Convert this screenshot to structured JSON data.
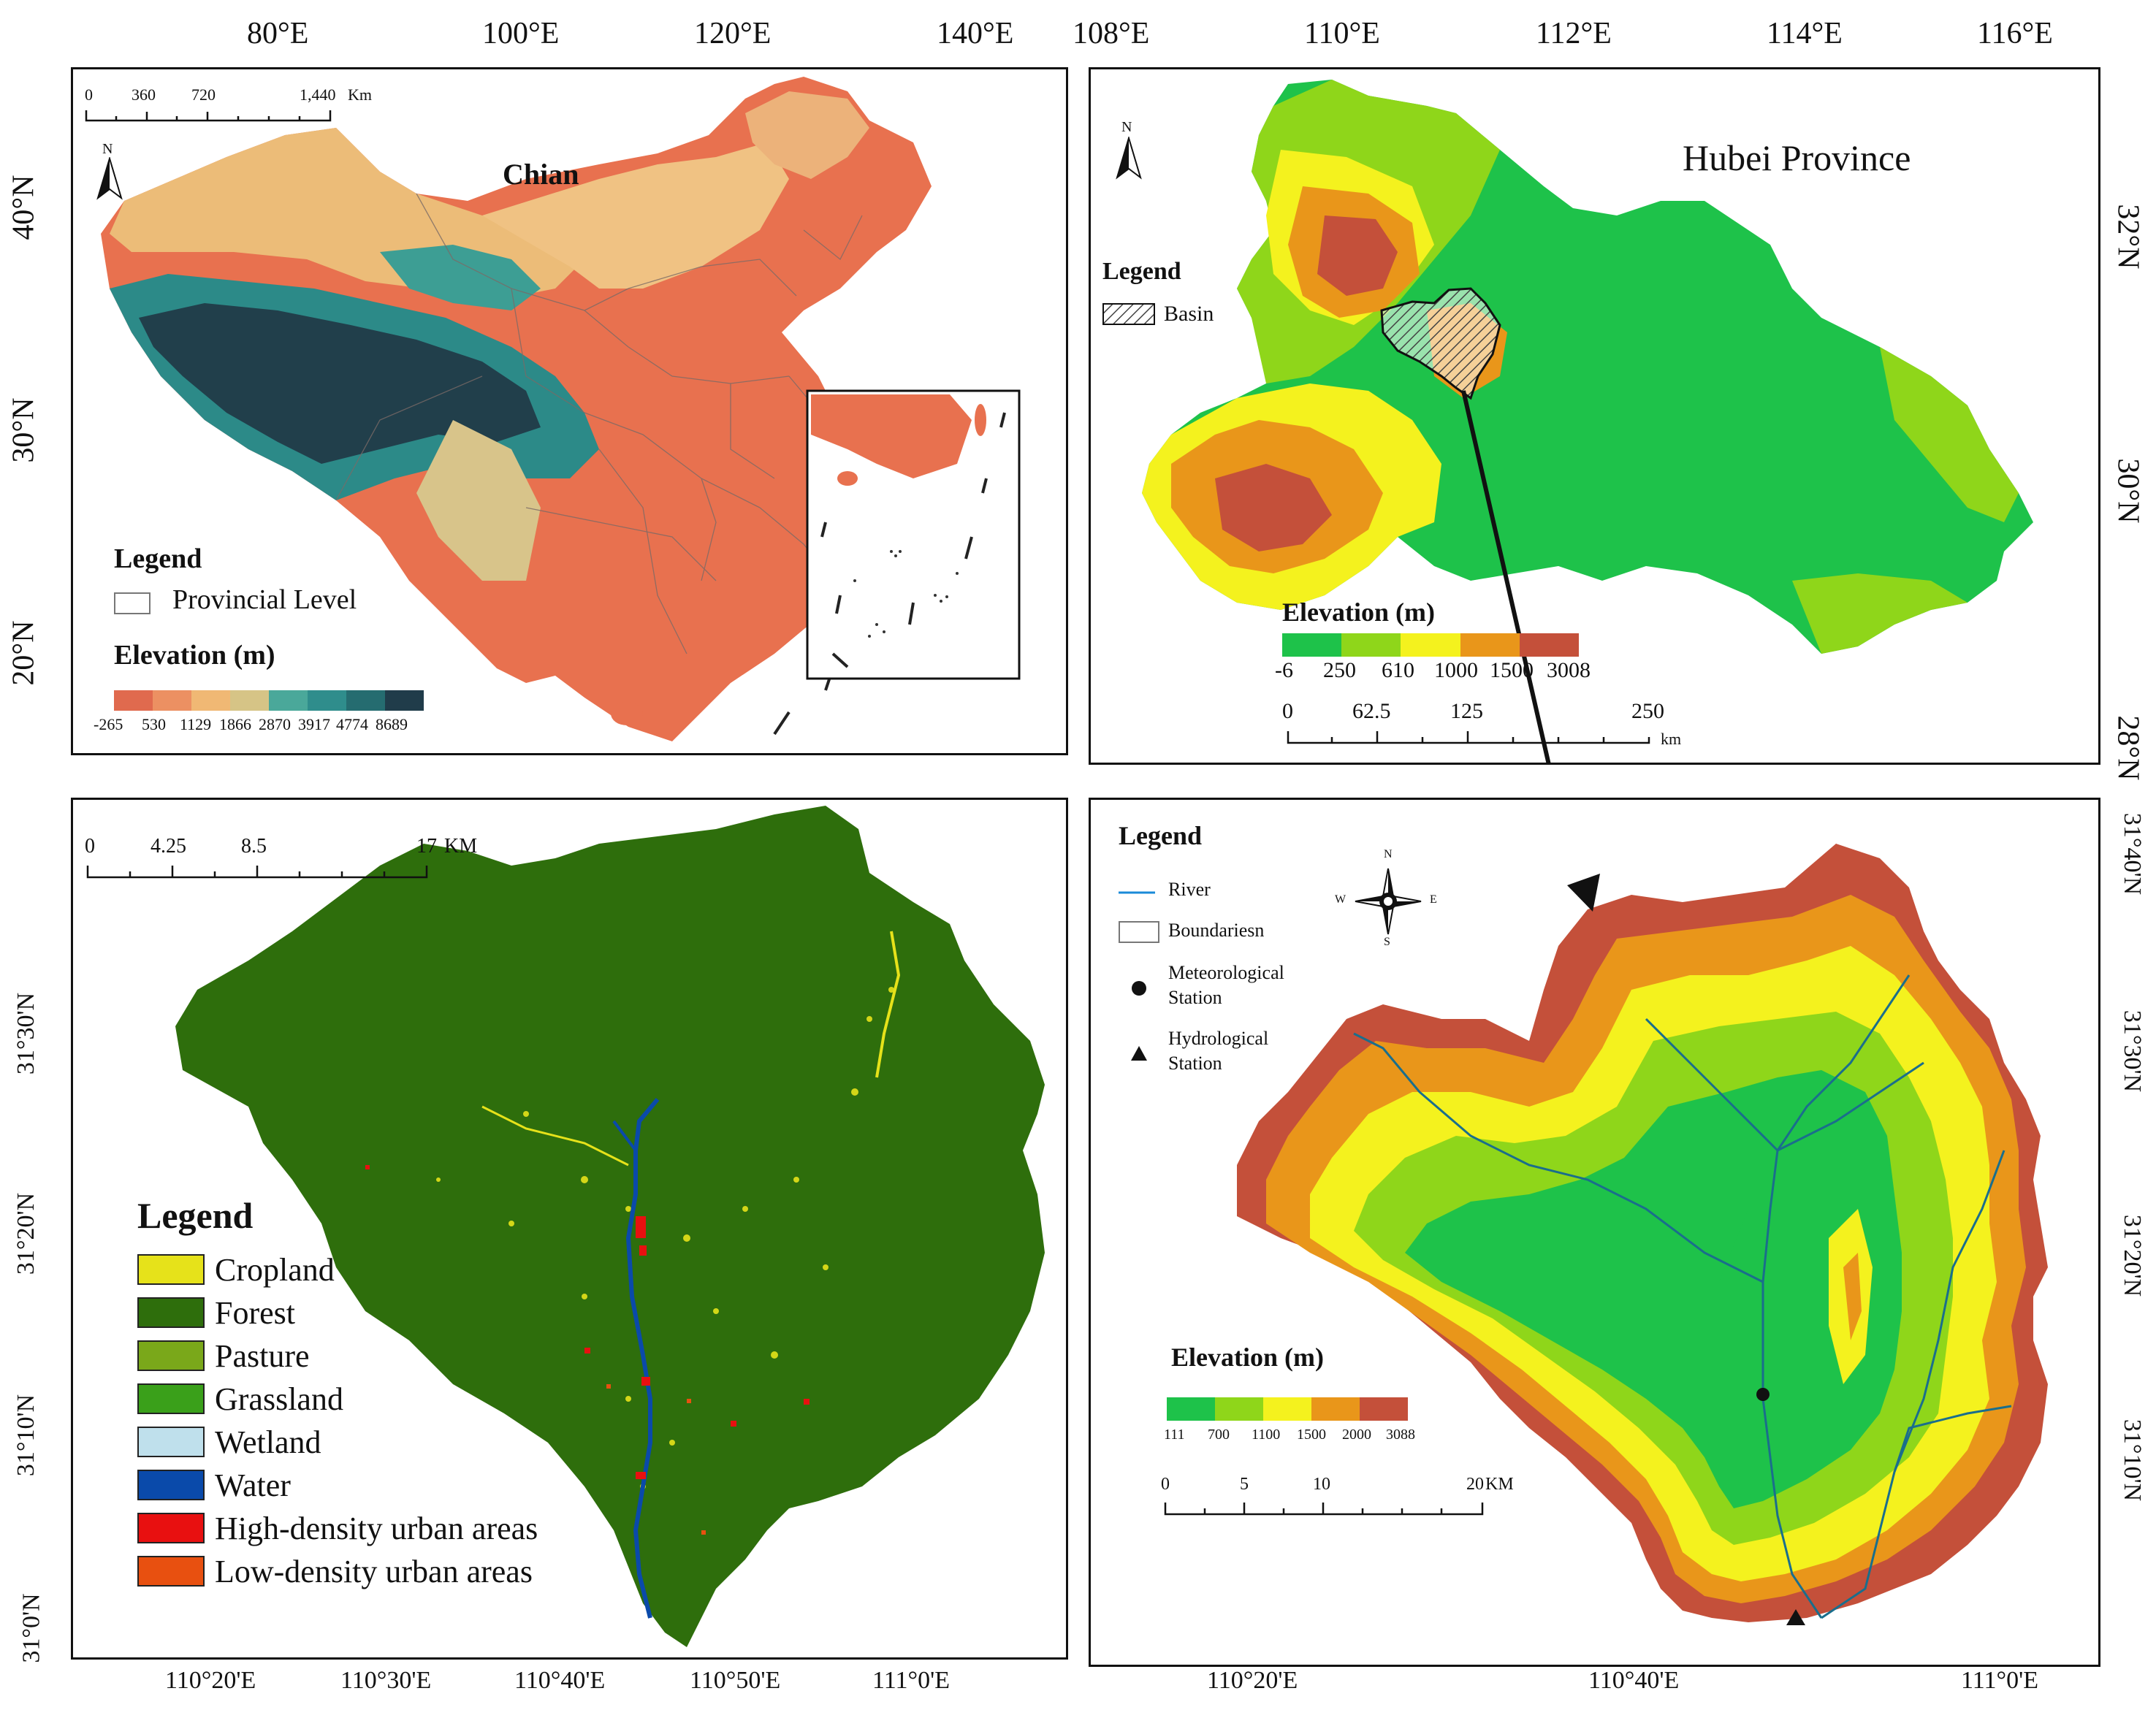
{
  "china_panel": {
    "title": "Chian",
    "lon_ticks": [
      "80°E",
      "100°E",
      "120°E",
      "140°E"
    ],
    "lat_ticks": [
      "40°N",
      "30°N",
      "20°N"
    ],
    "scale": {
      "labels": [
        "0",
        "360",
        "720",
        "1,440"
      ],
      "unit": "Km"
    },
    "north": "N",
    "legend_title": "Legend",
    "legend_item": "Provincial Level",
    "elevation_title": "Elevation (m)",
    "elevation_values": [
      "-265",
      "530",
      "1129",
      "1866",
      "2870",
      "3917",
      "4774",
      "8689"
    ],
    "elevation_colors": [
      "#e06a4e",
      "#ec9062",
      "#f0b874",
      "#d6c486",
      "#4aa89a",
      "#2f8d8c",
      "#256c70",
      "#203c4a"
    ]
  },
  "hubei_panel": {
    "title": "Hubei Province",
    "lon_ticks": [
      "108°E",
      "110°E",
      "112°E",
      "114°E",
      "116°E"
    ],
    "lat_ticks": [
      "32°N",
      "30°N",
      "28°N"
    ],
    "north": "N",
    "legend_title": "Legend",
    "legend_item": "Basin",
    "elevation_title": "Elevation (m)",
    "elevation_values": [
      "-6",
      "250",
      "610",
      "1000",
      "1500",
      "3008"
    ],
    "elevation_colors": [
      "#1ec24a",
      "#8fd61a",
      "#f4f21e",
      "#e9961a",
      "#c4503a"
    ],
    "scale": {
      "labels": [
        "0",
        "62.5",
        "125",
        "250"
      ],
      "unit": "km"
    }
  },
  "landuse_panel": {
    "lon_ticks": [
      "110°20'E",
      "110°30'E",
      "110°40'E",
      "110°50'E",
      "111°0'E"
    ],
    "lat_ticks": [
      "31°30'N",
      "31°20'N",
      "31°10'N",
      "31°0'N"
    ],
    "scale": {
      "labels": [
        "0",
        "4.25",
        "8.5",
        "17"
      ],
      "unit": "KM"
    },
    "legend_title": "Legend",
    "classes": [
      {
        "label": "Cropland",
        "color": "#e6e21a"
      },
      {
        "label": "Forest",
        "color": "#2e6e0c"
      },
      {
        "label": "Pasture",
        "color": "#7aa81a"
      },
      {
        "label": "Grassland",
        "color": "#3aa01a"
      },
      {
        "label": "Wetland",
        "color": "#bfe0ec"
      },
      {
        "label": "Water",
        "color": "#0a4aaa"
      },
      {
        "label": "High-density urban areas",
        "color": "#e81010"
      },
      {
        "label": "Low-density urban areas",
        "color": "#e85010"
      }
    ]
  },
  "basin_panel": {
    "lon_ticks": [
      "110°20'E",
      "110°40'E",
      "111°0'E"
    ],
    "lat_ticks": [
      "31°40'N",
      "31°30'N",
      "31°20'N",
      "31°10'N"
    ],
    "legend_title": "Legend",
    "legend_items": [
      {
        "label": "River"
      },
      {
        "label": "Boundariesn"
      },
      {
        "label": "Meteorological",
        "label2": "Station"
      },
      {
        "label": "Hydrological",
        "label2": "Station"
      }
    ],
    "compass": {
      "n": "N",
      "s": "S",
      "e": "E",
      "w": "W"
    },
    "elevation_title": "Elevation (m)",
    "elevation_values": [
      "111",
      "700",
      "1100",
      "1500",
      "2000",
      "3088"
    ],
    "elevation_colors": [
      "#1ec24a",
      "#8fd61a",
      "#f4f21e",
      "#e9961a",
      "#c4503a"
    ],
    "scale": {
      "labels": [
        "0",
        "5",
        "10",
        "20"
      ],
      "unit": "KM"
    }
  }
}
